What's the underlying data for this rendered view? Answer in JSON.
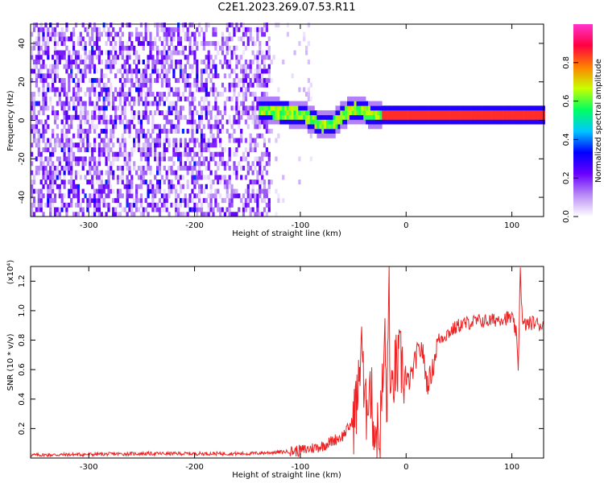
{
  "title": "C2E1.2023.269.07.53.R11",
  "chart_data": [
    {
      "type": "heatmap",
      "xlabel": "Height of straight line (km)",
      "ylabel": "Frequency (Hz)",
      "xlim": [
        -355,
        130
      ],
      "ylim": [
        -50,
        50
      ],
      "xticks": [
        -300,
        -200,
        -100,
        0,
        100
      ],
      "yticks": [
        -40,
        -20,
        0,
        20,
        40
      ],
      "colorbar": {
        "label": "Normalized spectral amplitude",
        "range": [
          0.0,
          1.0
        ],
        "ticks": [
          "0.0",
          "0.2",
          "0.4",
          "0.6",
          "0.8"
        ],
        "colors": [
          "#ffffff",
          "#b98cf5",
          "#6a00ff",
          "#0000ff",
          "#00c8ff",
          "#00ff60",
          "#c8ff00",
          "#ff8000",
          "#ff0040",
          "#ff33cc"
        ]
      },
      "ridge": {
        "x": [
          -140,
          -120,
          -100,
          -90,
          -80,
          -70,
          -60,
          -50,
          -40,
          -30,
          -20,
          0,
          40,
          80,
          100,
          130
        ],
        "y": [
          4,
          3,
          2,
          -1,
          -4,
          -3,
          2,
          5,
          3,
          1,
          1,
          1,
          1,
          1,
          2,
          1
        ]
      }
    },
    {
      "type": "line",
      "xlabel": "Height of straight line (km)",
      "ylabel": "SNR (10 * v/v)",
      "yscale_label": "(x10⁴)",
      "xlim": [
        -355,
        130
      ],
      "ylim": [
        0,
        1.3
      ],
      "xticks": [
        -300,
        -200,
        -100,
        0,
        100
      ],
      "yticks": [
        "0.2",
        "0.4",
        "0.6",
        "0.8",
        "1.0",
        "1.2"
      ],
      "series": [
        {
          "color": "#ee2222",
          "x": [
            -355,
            -300,
            -250,
            -200,
            -150,
            -120,
            -100,
            -80,
            -60,
            -50,
            -45,
            -42,
            -40,
            -38,
            -35,
            -30,
            -25,
            -22,
            -20,
            -18,
            -16,
            -15,
            -14,
            -12,
            -10,
            -5,
            0,
            5,
            10,
            15,
            20,
            25,
            30,
            40,
            50,
            60,
            70,
            80,
            90,
            100,
            104,
            106,
            108,
            110,
            120,
            130
          ],
          "y": [
            0.02,
            0.025,
            0.03,
            0.03,
            0.03,
            0.04,
            0.05,
            0.08,
            0.15,
            0.25,
            0.45,
            0.9,
            0.4,
            0.3,
            0.55,
            0.2,
            0.15,
            0.5,
            0.8,
            0.3,
            1.3,
            0.4,
            0.3,
            0.55,
            0.6,
            0.65,
            0.5,
            0.55,
            0.7,
            0.75,
            0.5,
            0.6,
            0.8,
            0.85,
            0.9,
            0.92,
            0.93,
            0.93,
            0.95,
            0.95,
            0.85,
            0.6,
            1.3,
            0.9,
            0.92,
            0.9
          ]
        }
      ]
    }
  ]
}
